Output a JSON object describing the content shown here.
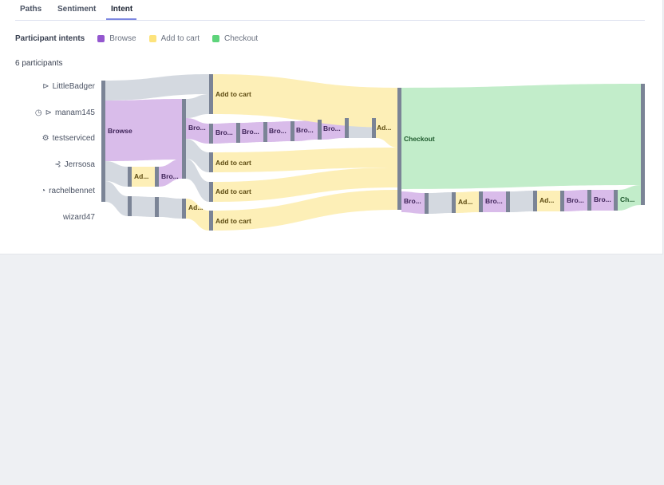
{
  "tabs": [
    {
      "label": "Paths",
      "active": false
    },
    {
      "label": "Sentiment",
      "active": false
    },
    {
      "label": "Intent",
      "active": true
    }
  ],
  "legend": {
    "title": "Participant intents",
    "items": [
      {
        "label": "Browse",
        "color": "#9457cf"
      },
      {
        "label": "Add to cart",
        "color": "#fde37c"
      },
      {
        "label": "Checkout",
        "color": "#5ed47b"
      }
    ]
  },
  "participants_count": "6 participants",
  "participants": [
    {
      "name": "LittleBadger",
      "icons": [
        "plane-icon"
      ]
    },
    {
      "name": "manam145",
      "icons": [
        "stopwatch-icon",
        "plane-icon"
      ]
    },
    {
      "name": "testserviced",
      "icons": [
        "network-icon"
      ]
    },
    {
      "name": "Jerrsosa",
      "icons": [
        "share-icon"
      ]
    },
    {
      "name": "rachelbennet",
      "icons": [
        "timer-icon"
      ]
    },
    {
      "name": "wizard47",
      "icons": []
    }
  ],
  "colors": {
    "browse_flow": "#d9bcea",
    "add_flow": "#fdefb7",
    "checkout_flow": "#c2edca",
    "neutral_flow": "#d4d9e0",
    "node_bar": "#7b8496",
    "browse_text": "#3e2358",
    "add_text": "#5c4a10",
    "checkout_text": "#1f5a2e"
  },
  "node_labels": {
    "browse": "Browse",
    "add_to_cart": "Add to cart",
    "checkout": "Checkout",
    "browse_short": "Bro...",
    "add_short": "Ad...",
    "checkout_short": "Ch..."
  }
}
